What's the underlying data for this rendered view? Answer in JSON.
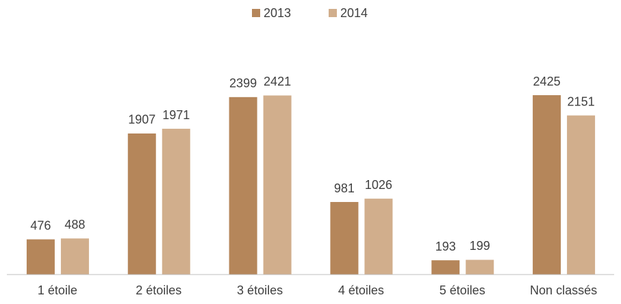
{
  "chart_data": {
    "type": "bar",
    "categories": [
      "1 étoile",
      "2 étoiles",
      "3 étoiles",
      "4 étoiles",
      "5 étoiles",
      "Non classés"
    ],
    "series": [
      {
        "name": "2013",
        "color": "#b5865a",
        "values": [
          476,
          1907,
          2399,
          981,
          193,
          2425
        ]
      },
      {
        "name": "2014",
        "color": "#d1ae8c",
        "values": [
          488,
          1971,
          2421,
          1026,
          199,
          2151
        ]
      }
    ],
    "legend": "top"
  }
}
